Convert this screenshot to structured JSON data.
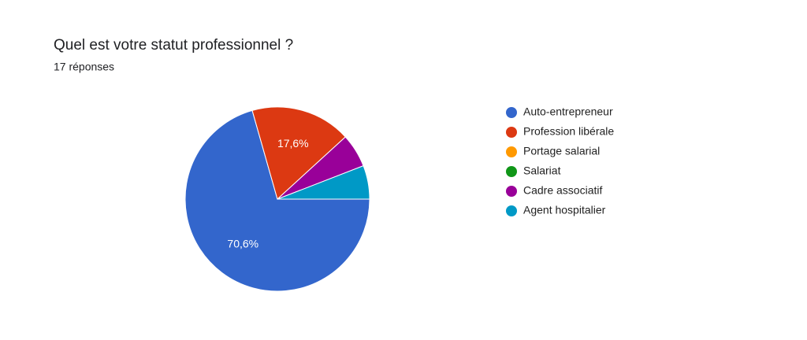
{
  "chart_data": {
    "type": "pie",
    "title": "Quel est votre statut professionnel ?",
    "subtitle": "17 réponses",
    "categories": [
      "Auto-entrepreneur",
      "Profession libérale",
      "Portage salarial",
      "Salariat",
      "Cadre associatif",
      "Agent hospitalier"
    ],
    "values": [
      70.6,
      17.6,
      0,
      0,
      5.9,
      5.9
    ],
    "value_labels": [
      "70,6%",
      "17,6%",
      null,
      null,
      null,
      null
    ],
    "colors": [
      "#3366cc",
      "#dc3912",
      "#ff9900",
      "#109618",
      "#990099",
      "#0099c6"
    ],
    "legend": "right"
  }
}
